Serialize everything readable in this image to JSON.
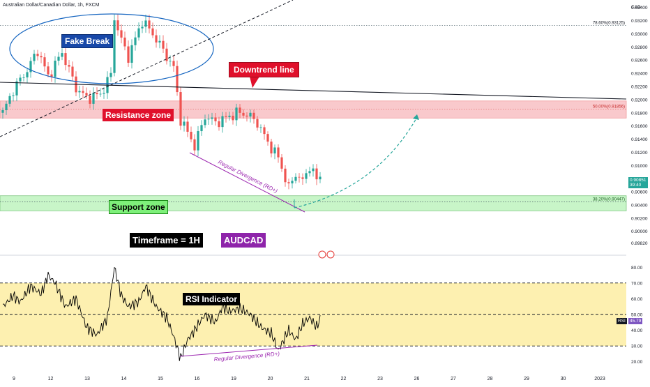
{
  "title": "Australian Dollar/Canadian Dollar, 1h, FXCM",
  "currency": "CAD",
  "colors": {
    "candle_up": "#26a69a",
    "candle_down": "#ef5350",
    "resistance_fill": "#f9c9cc",
    "support_fill": "#c8f5c8",
    "rsi_band": "#fdf0b0",
    "ellipse": "#1565c0",
    "divergence": "#9c27b0",
    "projection": "#26a69a"
  },
  "labels": {
    "fake_break": "Fake Break",
    "downtrend_line": "Downtrend line",
    "resistance_zone": "Resistance zone",
    "support_zone": "Support zone",
    "timeframe": "Timeframe = 1H",
    "symbol": "AUDCAD",
    "rsi_indicator": "RSI Indicator",
    "divergence_price": "Regular Divergence (RD+)",
    "divergence_rsi": "Regular Divergence (RD+)"
  },
  "fib_levels": [
    {
      "label": "78.60%(0.93125)",
      "value": 0.93125
    },
    {
      "label": "50.00%(0.91856)",
      "value": 0.91856
    },
    {
      "label": "38.20%(0.90447)",
      "value": 0.90447
    }
  ],
  "current_price": {
    "value": "0.90851",
    "countdown": "39:40"
  },
  "current_rsi": {
    "label": "RSI",
    "value": "45.79"
  },
  "chart_data": [
    {
      "type": "candlestick",
      "title": "Australian Dollar/Canadian Dollar, 1h, FXCM",
      "y_axis_label": "CAD",
      "ylim": [
        0.897,
        0.9345
      ],
      "y_ticks": [
        "0.93400",
        "0.93200",
        "0.93000",
        "0.92800",
        "0.92600",
        "0.92400",
        "0.92200",
        "0.92000",
        "0.91800",
        "0.91600",
        "0.91400",
        "0.91200",
        "0.91000",
        "0.90800",
        "0.90600",
        "0.90400",
        "0.90200",
        "0.90000",
        "0.89820"
      ],
      "x_ticks": [
        "9",
        "12",
        "13",
        "14",
        "15",
        "16",
        "19",
        "20",
        "21",
        "22",
        "23",
        "26",
        "27",
        "28",
        "29",
        "30",
        "2023"
      ],
      "zones": [
        {
          "name": "Resistance zone",
          "from": 0.9172,
          "to": 0.9198
        },
        {
          "name": "Support zone",
          "from": 0.9031,
          "to": 0.9054
        }
      ],
      "price_path": [
        [
          0,
          0.918
        ],
        [
          3,
          0.9215
        ],
        [
          7,
          0.9245
        ],
        [
          10,
          0.9275
        ],
        [
          13,
          0.9235
        ],
        [
          17,
          0.9272
        ],
        [
          21,
          0.9218
        ],
        [
          24,
          0.9202
        ],
        [
          28,
          0.9208
        ],
        [
          31,
          0.9238
        ],
        [
          32,
          0.9325
        ],
        [
          34,
          0.929
        ],
        [
          36,
          0.9265
        ],
        [
          40,
          0.932
        ],
        [
          43,
          0.93
        ],
        [
          46,
          0.9275
        ],
        [
          49,
          0.9248
        ],
        [
          51,
          0.917
        ],
        [
          53,
          0.915
        ],
        [
          55,
          0.913
        ],
        [
          58,
          0.9175
        ],
        [
          61,
          0.9165
        ],
        [
          64,
          0.9172
        ],
        [
          67,
          0.918
        ],
        [
          70,
          0.9178
        ],
        [
          73,
          0.9165
        ],
        [
          76,
          0.9135
        ],
        [
          79,
          0.9112
        ],
        [
          82,
          0.9065
        ],
        [
          84,
          0.9088
        ],
        [
          86,
          0.9075
        ],
        [
          88,
          0.91
        ],
        [
          90,
          0.9078
        ],
        [
          91,
          0.9083
        ]
      ]
    },
    {
      "type": "line",
      "title": "RSI",
      "ylim": [
        15,
        85
      ],
      "y_ticks": [
        "80.00",
        "70.00",
        "60.00",
        "50.00",
        "40.00",
        "30.00",
        "20.00"
      ],
      "bands": [
        30,
        50,
        70
      ],
      "values": [
        [
          0,
          55
        ],
        [
          3,
          62
        ],
        [
          5,
          58
        ],
        [
          8,
          68
        ],
        [
          11,
          63
        ],
        [
          13,
          75
        ],
        [
          15,
          70
        ],
        [
          18,
          55
        ],
        [
          21,
          60
        ],
        [
          24,
          42
        ],
        [
          27,
          37
        ],
        [
          30,
          48
        ],
        [
          32,
          80
        ],
        [
          34,
          62
        ],
        [
          36,
          55
        ],
        [
          39,
          58
        ],
        [
          41,
          68
        ],
        [
          44,
          55
        ],
        [
          47,
          48
        ],
        [
          49,
          36
        ],
        [
          51,
          22
        ],
        [
          53,
          34
        ],
        [
          55,
          40
        ],
        [
          58,
          50
        ],
        [
          61,
          45
        ],
        [
          63,
          55
        ],
        [
          65,
          52
        ],
        [
          68,
          54
        ],
        [
          71,
          50
        ],
        [
          74,
          42
        ],
        [
          77,
          38
        ],
        [
          79,
          27
        ],
        [
          82,
          40
        ],
        [
          84,
          34
        ],
        [
          86,
          44
        ],
        [
          88,
          48
        ],
        [
          90,
          42
        ],
        [
          91,
          47
        ]
      ]
    }
  ]
}
